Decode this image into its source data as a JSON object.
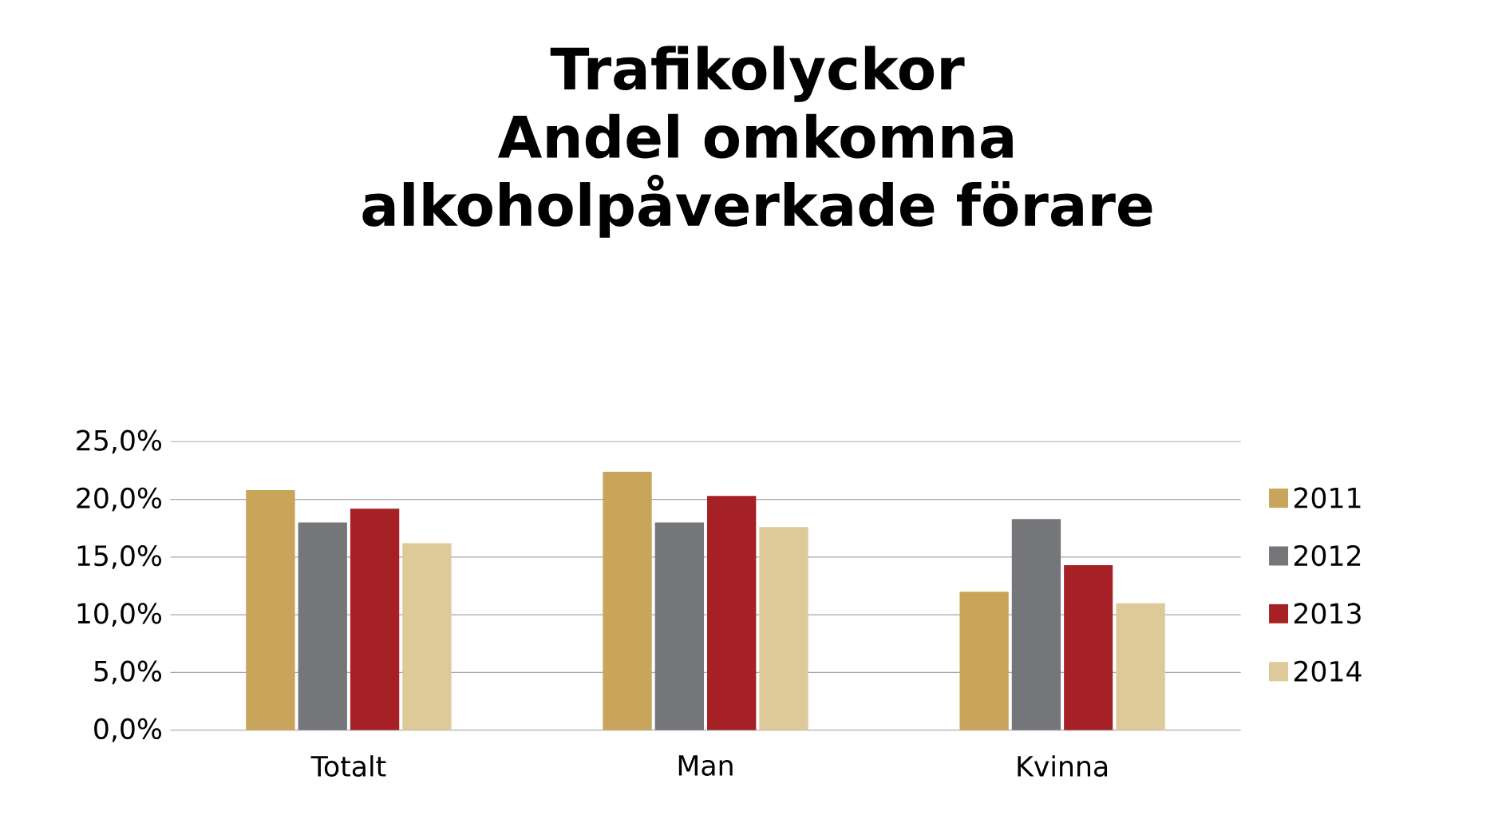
{
  "chart_data": {
    "type": "bar",
    "title": "Trafikolyckor",
    "subtitle": "Andel omkomna alkoholpåverkade förare",
    "categories": [
      "Totalt",
      "Man",
      "Kvinna"
    ],
    "series": [
      {
        "name": "2011",
        "color": "#c8a55a",
        "values": [
          20.8,
          22.4,
          12.0
        ]
      },
      {
        "name": "2012",
        "color": "#75767a",
        "values": [
          18.0,
          18.0,
          18.3
        ]
      },
      {
        "name": "2013",
        "color": "#a52125",
        "values": [
          19.2,
          20.3,
          14.3
        ]
      },
      {
        "name": "2014",
        "color": "#dec999",
        "values": [
          16.2,
          17.6,
          11.0
        ]
      }
    ],
    "ylim": [
      0,
      25
    ],
    "yticks": [
      {
        "value": 0,
        "label": "0,0%"
      },
      {
        "value": 5,
        "label": "5,0%"
      },
      {
        "value": 10,
        "label": "10,0%"
      },
      {
        "value": 15,
        "label": "15,0%"
      },
      {
        "value": 20,
        "label": "20,0%"
      },
      {
        "value": 25,
        "label": "25,0%"
      }
    ],
    "grid": "y",
    "legend": "right"
  }
}
